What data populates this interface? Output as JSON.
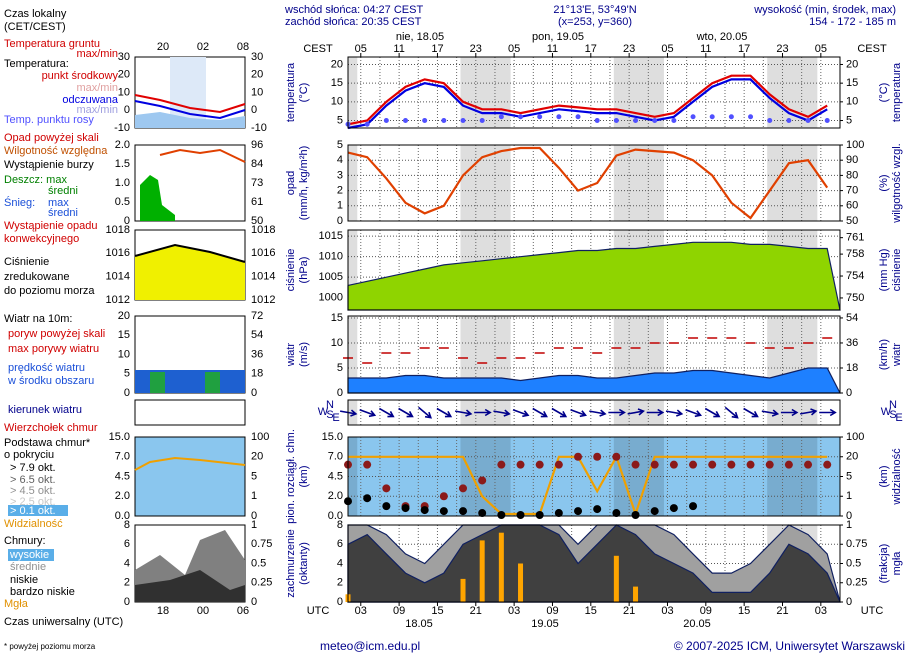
{
  "header": {
    "sunrise": "wschód słońca: 04:27 CEST",
    "sunset": "zachód słońca: 20:35 CEST",
    "coords": "21°13'E, 53°49'N",
    "grid_point": "(x=253,  y=360)",
    "height_label": "wysokość (min, środek, max)",
    "heights": "154 - 172 - 185 m"
  },
  "legend": {
    "local_time": "Czas lokalny",
    "local_time_zone": "(CET/CEST)",
    "ground_temp": "Temperatura gruntu",
    "ground_maxmin": "max/min",
    "temperature": "Temperatura:",
    "maxmin1": "max/min",
    "maxmin2": "max/min",
    "precip_over": "Opad powyżej skali",
    "storm": "Wystąpienie burzy",
    "rain": "Deszcz: max",
    "rain_avg": "średni",
    "snow": "Śnieg:",
    "snow_max": "max",
    "snow_avg": "średni",
    "convective": "Wystąpienie opadu",
    "convective2": "konwekcyjnego",
    "pressure2": "zredukowane",
    "pressure3": "do poziomu morza",
    "wind10": "Wiatr na 10m:",
    "gust_over": "poryw powyżej skali",
    "speed2": "w środku obszaru",
    "cloud_base": "Podstawa chmur*",
    "cover_of": "o pokryciu",
    "ok65": "> 6.5 okt.",
    "ok45": "> 4.5 okt.",
    "ok25": "> 2.5 okt.",
    "ok01": "> 0.1 okt.",
    "clouds": "Chmury:",
    "high": "wysokie",
    "very_low": "bardzo niskie",
    "utc_time": "Czas uniwersalny (UTC)"
  },
  "mini_hours_top": [
    "20",
    "02",
    "08"
  ],
  "mini_hours_bottom": [
    "18",
    "00",
    "06"
  ],
  "mini_axes": [
    {
      "left": [
        "30",
        "20",
        "10",
        "0",
        "-10"
      ],
      "right": [
        "30",
        "20",
        "10",
        "0",
        "-10"
      ]
    },
    {
      "left": [
        "2.0",
        "1.5",
        "1.0",
        "0.5",
        "0"
      ],
      "right": [
        "96",
        "84",
        "73",
        "61",
        "50"
      ]
    },
    {
      "left": [
        "1018",
        "1016",
        "1014",
        "1012"
      ],
      "right": [
        "1018",
        "1016",
        "1014",
        "1012"
      ]
    },
    {
      "left": [
        "20",
        "15",
        "10",
        "5",
        "0"
      ],
      "right": [
        "72",
        "54",
        "36",
        "18",
        "0"
      ]
    },
    {
      "left": [
        "15.0",
        "7.0",
        "4.5",
        "2.0",
        "0.0"
      ],
      "right": [
        "100",
        "20",
        "5",
        "1",
        "0"
      ]
    },
    {
      "left": [
        "8",
        "6",
        "4",
        "2",
        "0"
      ],
      "right": [
        "1",
        "0.75",
        "0.5",
        "0.25",
        "0"
      ]
    }
  ],
  "time": {
    "zone_top": "CEST",
    "zone_bottom": "UTC",
    "xlim": [
      3,
      80
    ],
    "x": [
      3,
      6,
      9,
      12,
      15,
      18,
      21,
      24,
      27,
      30,
      33,
      36,
      39,
      42,
      45,
      48,
      51,
      54,
      57,
      60,
      63,
      66,
      69,
      72,
      75,
      78
    ],
    "cest_ticks": [
      {
        "value": 5,
        "label": "05"
      },
      11,
      17,
      23,
      {
        "value": 29,
        "label": "05"
      },
      {
        "value": 35,
        "label": "11"
      },
      {
        "value": 41,
        "label": "17"
      },
      {
        "value": 47,
        "label": "23"
      },
      {
        "value": 53,
        "label": "05"
      },
      {
        "value": 59,
        "label": "11"
      },
      {
        "value": 65,
        "label": "17"
      },
      {
        "value": 71,
        "label": "23"
      },
      {
        "value": 77,
        "label": "05"
      }
    ],
    "utc_ticks": [
      {
        "value": 5,
        "label": "03"
      },
      {
        "value": 11,
        "label": "09"
      },
      {
        "value": 17,
        "label": "15"
      },
      {
        "value": 23,
        "label": "21"
      },
      {
        "value": 29,
        "label": "03"
      },
      {
        "value": 35,
        "label": "09"
      },
      {
        "value": 41,
        "label": "15"
      },
      {
        "value": 47,
        "label": "21"
      },
      {
        "value": 53,
        "label": "03"
      },
      {
        "value": 59,
        "label": "09"
      },
      {
        "value": 65,
        "label": "15"
      },
      {
        "value": 71,
        "label": "21"
      },
      {
        "value": 77,
        "label": "03"
      }
    ],
    "days_top": [
      "nie, 18.05",
      "pon, 19.05",
      "wto, 20.05"
    ],
    "days_bottom": [
      "18.05",
      "19.05",
      "20.05"
    ],
    "compass": [
      "N",
      "W",
      "E",
      "S"
    ]
  },
  "chart_data": [
    {
      "type": "line",
      "y_label": [
        "temperatura",
        "(°C)"
      ],
      "y2_label": [
        "(°C)",
        "temperatura"
      ],
      "ylim": [
        3,
        22
      ],
      "yticks": [
        5,
        10,
        15,
        20
      ],
      "y2lim": [
        3,
        22
      ],
      "y2ticks": [
        5,
        10,
        15,
        20
      ],
      "grid": true,
      "series": [
        {
          "name": "punkt środkowy",
          "color": "#e00000",
          "values": [
            4,
            5,
            10,
            14,
            16,
            15,
            10,
            8,
            8,
            7,
            8,
            9,
            8.5,
            8,
            8,
            7,
            6,
            7,
            11,
            15,
            17,
            17,
            12,
            8,
            6,
            9
          ]
        },
        {
          "name": "odczuwana",
          "color": "#0000e0",
          "values": [
            3,
            4,
            9,
            13,
            15,
            14,
            9,
            7,
            7,
            6,
            7,
            8,
            7.5,
            7,
            7,
            6,
            5,
            6,
            10,
            14,
            16,
            16,
            11,
            7,
            5,
            8
          ]
        },
        {
          "name": "Temp. punktu rosy",
          "color": "#5050ff",
          "kind": "dots",
          "values": [
            4,
            4,
            5,
            5,
            5,
            5,
            5,
            5,
            6,
            6,
            6,
            6,
            6,
            5,
            5,
            5,
            5,
            5,
            6,
            6,
            6,
            6,
            5,
            5,
            5,
            5
          ]
        }
      ]
    },
    {
      "type": "line",
      "y_label": [
        "opad",
        "(mm/h, kg/m²h)"
      ],
      "y2_label": [
        "(%)",
        "wilgotność wzgl."
      ],
      "ylim": [
        0,
        5
      ],
      "yticks": [
        0,
        1,
        2,
        3,
        4,
        5
      ],
      "y2lim": [
        50,
        100
      ],
      "y2ticks": [
        50,
        60,
        70,
        80,
        90,
        100
      ],
      "grid": true,
      "series": [
        {
          "name": "Wilgotność względna",
          "color": "#e04000",
          "axis": "y2",
          "values": [
            95,
            92,
            78,
            62,
            55,
            60,
            80,
            92,
            96,
            98,
            98,
            85,
            70,
            75,
            93,
            97,
            96,
            95,
            90,
            80,
            62,
            52,
            70,
            88,
            90,
            72
          ]
        }
      ]
    },
    {
      "type": "area",
      "y_label": [
        "ciśnienie",
        "(hPa)"
      ],
      "y2_label": [
        "(mm Hg)",
        "ciśnienie"
      ],
      "ylim": [
        997,
        1016.5
      ],
      "yticks": [
        1000,
        1005,
        1010,
        1015
      ],
      "y2lim": [
        747.8,
        762.4
      ],
      "y2ticks": [
        750,
        754,
        758,
        761
      ],
      "grid": true,
      "series": [
        {
          "name": "Ciśnienie",
          "color": "#8fd400",
          "values": [
            1003,
            1004,
            1005,
            1006,
            1007,
            1008,
            1008.5,
            1009,
            1009.5,
            1010,
            1010.5,
            1011,
            1011.5,
            1011.5,
            1012,
            1012,
            1012.5,
            1013,
            1013.5,
            1013.5,
            1013.5,
            1013,
            1013,
            1012.5,
            1012,
            1012
          ]
        }
      ]
    },
    {
      "type": "area",
      "y_label": [
        "wiatr",
        "(m/s)"
      ],
      "y2_label": [
        "(km/h)",
        "wiatr"
      ],
      "ylim": [
        0,
        15.4
      ],
      "yticks": [
        0,
        5,
        10,
        15
      ],
      "y2lim": [
        0,
        55.4
      ],
      "y2ticks": [
        0,
        18,
        36,
        54
      ],
      "grid": true,
      "series": [
        {
          "name": "prędkość wiatru",
          "color": "#1e80ff",
          "values": [
            3,
            3,
            3,
            3.5,
            3.5,
            3,
            3,
            3,
            3,
            2.5,
            3,
            3.5,
            3.5,
            3,
            3,
            3.5,
            4,
            4,
            4.5,
            4.5,
            4,
            3.5,
            3,
            4,
            5,
            5
          ]
        },
        {
          "name": "max porywy wiatru",
          "color": "#c00000",
          "kind": "dashes",
          "values": [
            7,
            6,
            8,
            8,
            9,
            9,
            7,
            6,
            7,
            7,
            8,
            9,
            9,
            8,
            9,
            9,
            10,
            10,
            11,
            11,
            11,
            10,
            9,
            9,
            10,
            11
          ]
        }
      ]
    },
    {
      "type": "arrows",
      "series": [
        {
          "name": "kierunek wiatru",
          "color": "#00008b",
          "values": [
            280,
            290,
            300,
            300,
            310,
            300,
            280,
            270,
            280,
            290,
            300,
            300,
            290,
            280,
            270,
            260,
            270,
            280,
            290,
            300,
            310,
            300,
            280,
            270,
            260,
            270
          ]
        }
      ]
    },
    {
      "type": "scatter",
      "y_label": [
        "pion. rozciągł. chm.",
        "(km)"
      ],
      "y2_label": [
        "(km)",
        "widzialność"
      ],
      "axis_scale": "piecewise",
      "background": "#8ac6ee",
      "ylim": [
        0,
        15
      ],
      "yticks": [
        {
          "value": 0,
          "label": "0.0"
        },
        {
          "value": 2,
          "label": "2.0"
        },
        4.5,
        {
          "value": 7,
          "label": "7.0"
        },
        {
          "value": 15,
          "label": "15.0"
        }
      ],
      "y2lim": [
        0,
        100
      ],
      "y2ticks": [
        0,
        1,
        5,
        20,
        100
      ],
      "grid": true,
      "series": [
        {
          "name": "Widzialność",
          "color": "#f0a000",
          "kind": "line",
          "axis": "y2",
          "values": [
            20,
            20,
            20,
            20,
            20,
            20,
            20,
            1,
            0.1,
            0.1,
            0.1,
            20,
            20,
            2,
            20,
            0.1,
            20,
            20,
            20,
            20,
            20,
            20,
            20,
            20,
            20,
            20
          ]
        },
        {
          "name": "Wierzchołek chmur",
          "color": "#8b1a1a",
          "values": [
            6,
            6,
            3,
            1,
            1,
            2,
            3,
            4,
            6,
            6,
            6,
            6,
            7,
            7,
            7,
            6,
            6,
            6,
            6,
            6,
            6,
            6,
            6,
            6,
            6,
            6
          ]
        },
        {
          "name": "> 7.9 okt.",
          "color": "#000000",
          "values": [
            1.5,
            1.8,
            1,
            0.8,
            0.6,
            0.5,
            0.5,
            0.3,
            0.1,
            0.1,
            0.1,
            0.3,
            0.5,
            0.7,
            0.3,
            0.1,
            0.5,
            0.8,
            1,
            null,
            null,
            null,
            null,
            null,
            null,
            null
          ]
        }
      ]
    },
    {
      "type": "area",
      "y_label": [
        "zachmurzenie",
        "(oktanty)"
      ],
      "y2_label": [
        "(frakcja)",
        "mgła"
      ],
      "ylim": [
        0,
        8
      ],
      "yticks": [
        0,
        2,
        4,
        6,
        8
      ],
      "y2lim": [
        0,
        1
      ],
      "y2ticks": [
        0,
        0.25,
        0.5,
        0.75,
        1
      ],
      "grid": true,
      "series": [
        {
          "name": "średnie",
          "color": "#a0a0a0",
          "values": [
            8,
            8,
            7,
            5,
            4,
            6,
            8,
            8,
            8,
            8,
            8,
            8,
            6,
            8,
            8,
            8,
            8,
            7,
            5,
            3,
            3,
            4,
            6,
            8,
            7,
            5
          ]
        },
        {
          "name": "niskie",
          "color": "#404040",
          "values": [
            6,
            7,
            5,
            3,
            2,
            3,
            6,
            7,
            8,
            8,
            8,
            7,
            4,
            6,
            8,
            7,
            5,
            4,
            3,
            1,
            1,
            1,
            3,
            6,
            5,
            3
          ]
        },
        {
          "name": "Mgła",
          "color": "#ffa500",
          "kind": "bars",
          "axis": "y2",
          "values": [
            0.1,
            0,
            0,
            0,
            0,
            0,
            0.3,
            0.8,
            0.9,
            0.5,
            0,
            0,
            0,
            0,
            0.6,
            0.2,
            0,
            0,
            0,
            0,
            0,
            0,
            0,
            0,
            0,
            0
          ]
        }
      ]
    }
  ],
  "footer": {
    "note": "* powyżej poziomu morza",
    "email": "meteo@icm.edu.pl",
    "copyright": "© 2007-2025 ICM, Uniwersytet Warszawski"
  }
}
